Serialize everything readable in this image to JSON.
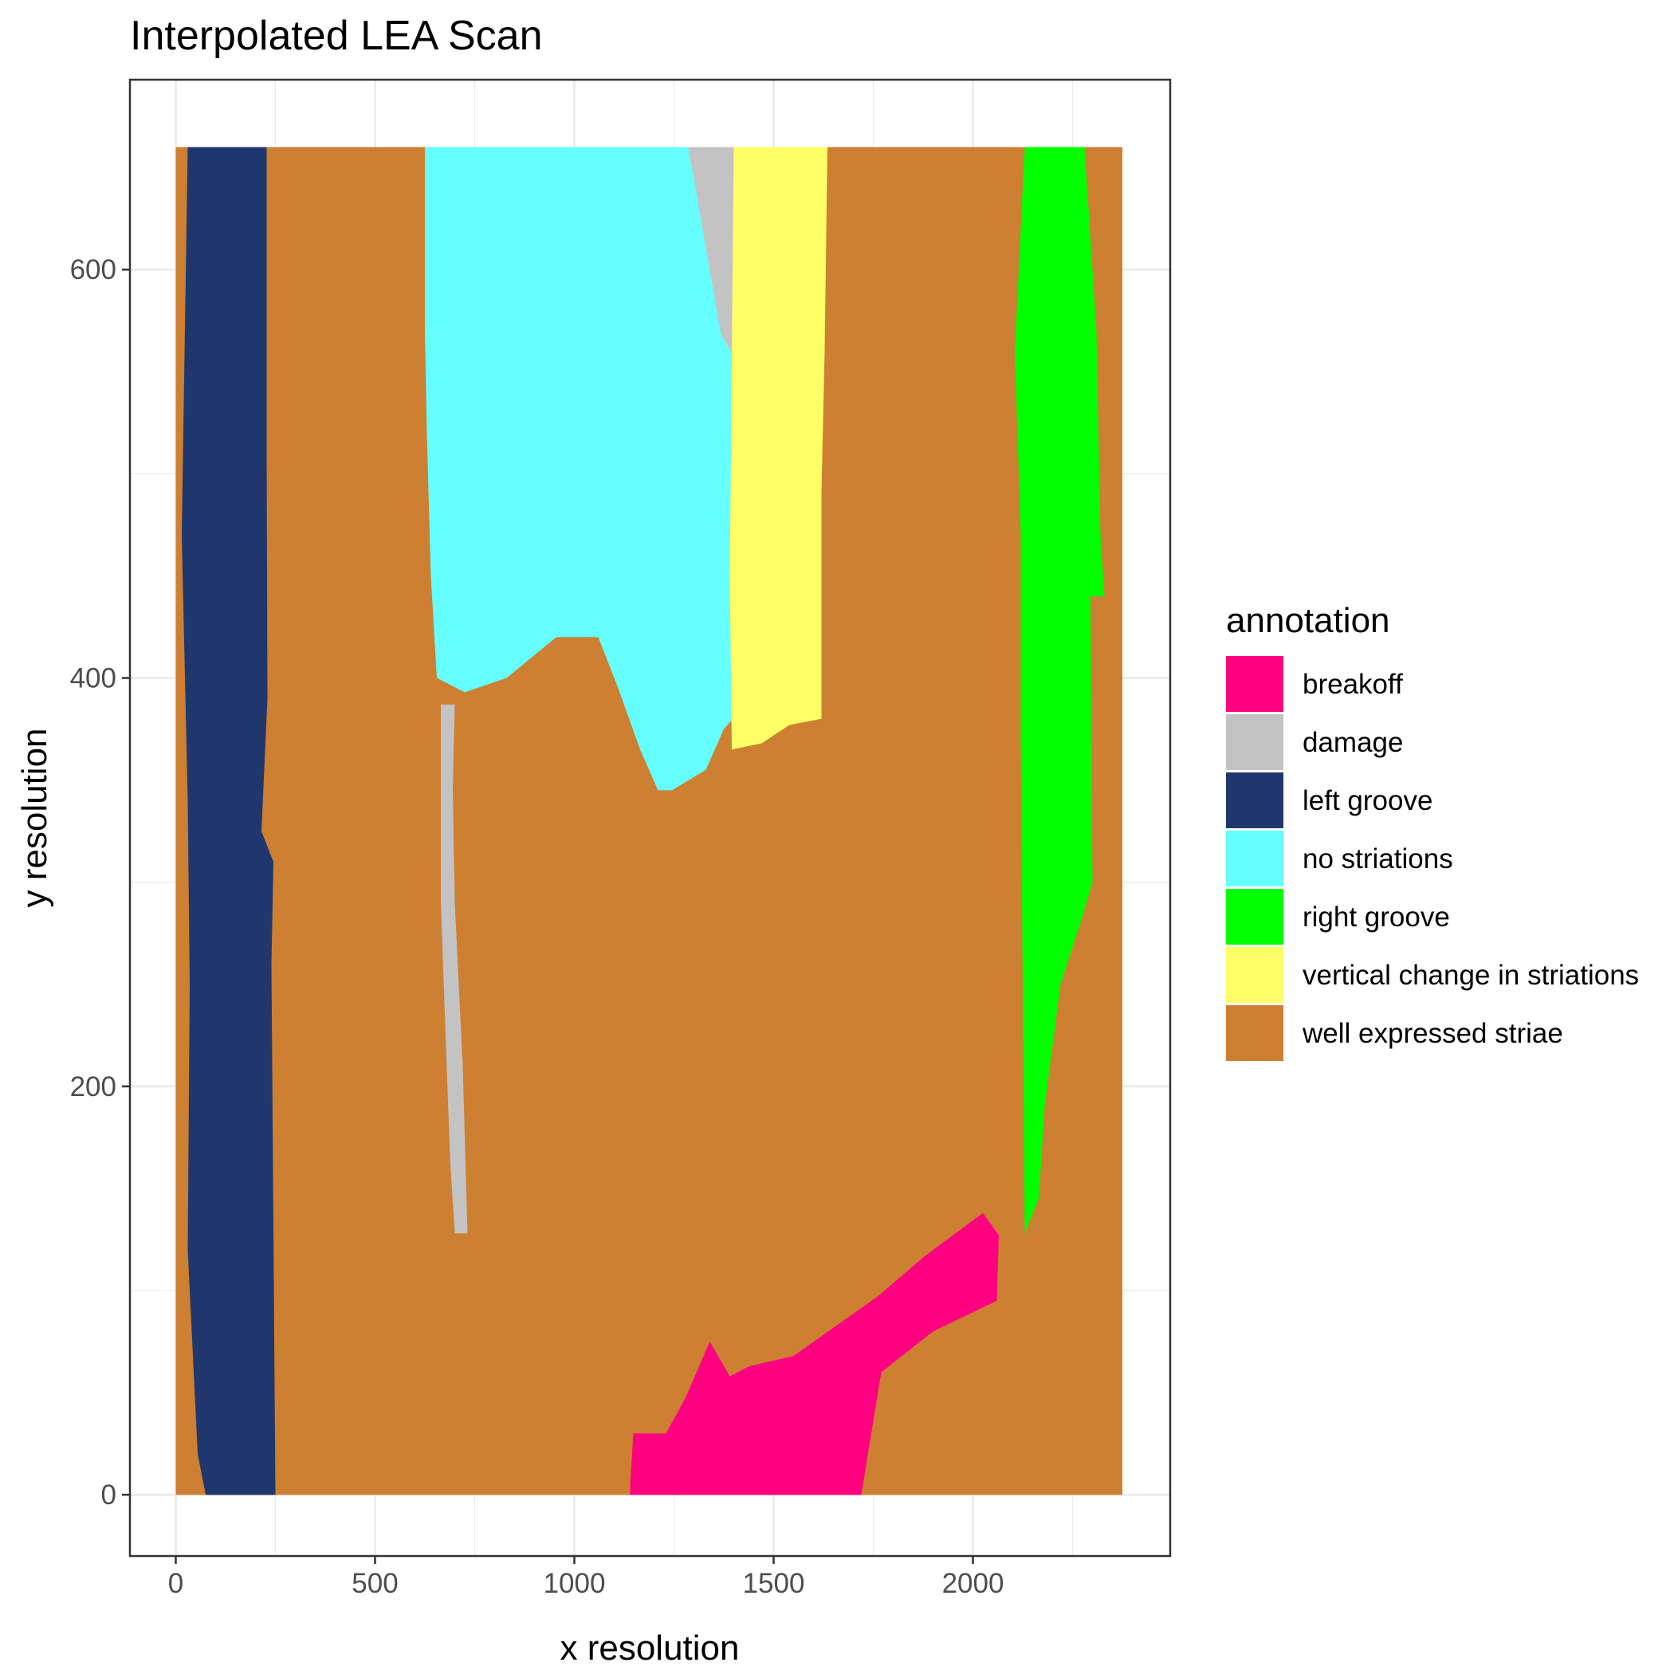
{
  "chart_data": {
    "type": "heatmap",
    "title": "Interpolated LEA Scan",
    "xlabel": "x resolution",
    "ylabel": "y resolution",
    "xlim": [
      -115,
      2495
    ],
    "ylim": [
      -30,
      693
    ],
    "xticks": [
      0,
      500,
      1000,
      1500,
      2000
    ],
    "yticks": [
      0,
      200,
      400,
      600
    ],
    "grid": true,
    "legend": {
      "title": "annotation",
      "position": "right",
      "entries": [
        {
          "label": "breakoff",
          "color": "#FF0080"
        },
        {
          "label": "damage",
          "color": "#C3C3C3"
        },
        {
          "label": "left groove",
          "color": "#1F376C"
        },
        {
          "label": "no striations",
          "color": "#66FFFF"
        },
        {
          "label": "right groove",
          "color": "#00FF00"
        },
        {
          "label": "vertical change in striations",
          "color": "#FFFF66"
        },
        {
          "label": "well expressed striae",
          "color": "#CD7F32"
        }
      ]
    },
    "regions": [
      {
        "annotation": "well expressed striae",
        "color": "#CD7F32",
        "polygon": [
          [
            0,
            0
          ],
          [
            2375,
            0
          ],
          [
            2375,
            660
          ],
          [
            0,
            660
          ]
        ]
      },
      {
        "annotation": "left groove",
        "color": "#1F376C",
        "polygon": [
          [
            75,
            0
          ],
          [
            250,
            0
          ],
          [
            240,
            260
          ],
          [
            245,
            310
          ],
          [
            215,
            325
          ],
          [
            230,
            390
          ],
          [
            228,
            510
          ],
          [
            228,
            660
          ],
          [
            30,
            660
          ],
          [
            15,
            470
          ],
          [
            30,
            340
          ],
          [
            35,
            250
          ],
          [
            30,
            120
          ],
          [
            55,
            20
          ]
        ]
      },
      {
        "annotation": "no striations",
        "color": "#66FFFF",
        "polygon": [
          [
            625,
            660
          ],
          [
            1285,
            660
          ],
          [
            1360,
            630
          ],
          [
            1400,
            590
          ],
          [
            1398,
            380
          ],
          [
            1375,
            375
          ],
          [
            1330,
            355
          ],
          [
            1245,
            345
          ],
          [
            1210,
            345
          ],
          [
            1165,
            365
          ],
          [
            1110,
            395
          ],
          [
            1060,
            420
          ],
          [
            955,
            420
          ],
          [
            830,
            400
          ],
          [
            725,
            393
          ],
          [
            655,
            400
          ],
          [
            640,
            450
          ],
          [
            630,
            520
          ],
          [
            625,
            570
          ]
        ]
      },
      {
        "annotation": "damage",
        "color": "#C3C3C3",
        "polygon": [
          [
            1285,
            660
          ],
          [
            1400,
            660
          ],
          [
            1400,
            558
          ],
          [
            1368,
            568
          ],
          [
            1335,
            605
          ],
          [
            1295,
            650
          ]
        ]
      },
      {
        "annotation": "damage",
        "color": "#C3C3C3",
        "polygon": [
          [
            665,
            387
          ],
          [
            700,
            387
          ],
          [
            695,
            345
          ],
          [
            700,
            290
          ],
          [
            720,
            210
          ],
          [
            732,
            128
          ],
          [
            700,
            128
          ],
          [
            688,
            165
          ],
          [
            665,
            290
          ],
          [
            665,
            350
          ]
        ]
      },
      {
        "annotation": "vertical change in striations",
        "color": "#FFFF66",
        "polygon": [
          [
            1400,
            660
          ],
          [
            1635,
            660
          ],
          [
            1628,
            560
          ],
          [
            1620,
            490
          ],
          [
            1620,
            380
          ],
          [
            1540,
            377
          ],
          [
            1470,
            368
          ],
          [
            1395,
            365
          ],
          [
            1390,
            450
          ]
        ]
      },
      {
        "annotation": "right groove",
        "color": "#00FF00",
        "polygon": [
          [
            2130,
            660
          ],
          [
            2280,
            660
          ],
          [
            2310,
            570
          ],
          [
            2320,
            470
          ],
          [
            2330,
            440
          ],
          [
            2295,
            440
          ],
          [
            2300,
            300
          ],
          [
            2270,
            280
          ],
          [
            2220,
            250
          ],
          [
            2180,
            190
          ],
          [
            2165,
            145
          ],
          [
            2130,
            128
          ],
          [
            2125,
            250
          ],
          [
            2120,
            370
          ],
          [
            2120,
            470
          ],
          [
            2105,
            560
          ]
        ]
      },
      {
        "annotation": "breakoff",
        "color": "#FF0080",
        "polygon": [
          [
            1140,
            0
          ],
          [
            1720,
            0
          ],
          [
            1770,
            60
          ],
          [
            1900,
            80
          ],
          [
            2060,
            95
          ],
          [
            2065,
            127
          ],
          [
            2025,
            138
          ],
          [
            1880,
            117
          ],
          [
            1760,
            97
          ],
          [
            1550,
            68
          ],
          [
            1440,
            63
          ],
          [
            1390,
            58
          ],
          [
            1340,
            75
          ],
          [
            1280,
            48
          ],
          [
            1230,
            30
          ],
          [
            1148,
            30
          ],
          [
            1140,
            5
          ]
        ]
      }
    ]
  }
}
